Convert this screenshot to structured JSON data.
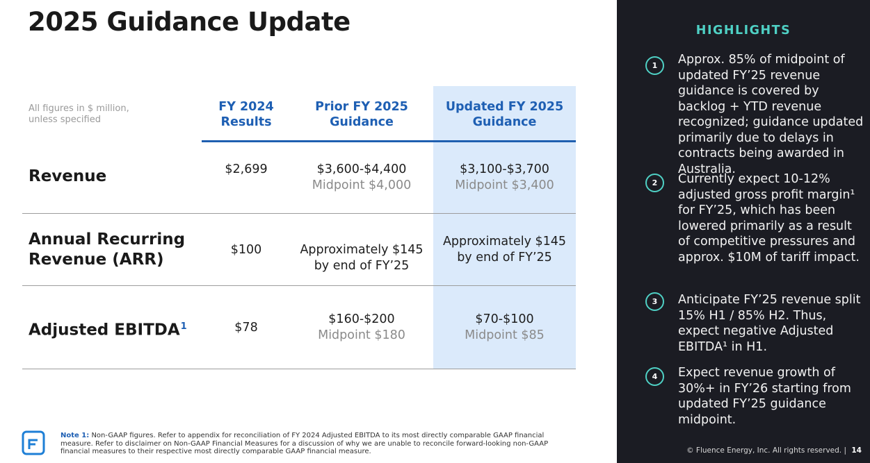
{
  "title": "2025 Guidance Update",
  "table": {
    "units_note_line1": "All figures in $ million,",
    "units_note_line2": "unless specified",
    "columns": [
      {
        "line1": "FY 2024",
        "line2": "Results"
      },
      {
        "line1": "Prior FY 2025",
        "line2": "Guidance"
      },
      {
        "line1": "Updated FY 2025",
        "line2": "Guidance"
      }
    ],
    "rows": [
      {
        "label_line1": "Revenue",
        "label_line2": "",
        "label_sup": "",
        "fy2024": "$2,699",
        "prior_main": "$3,600-$4,400",
        "prior_mid": "Midpoint $4,000",
        "updated_main": "$3,100-$3,700",
        "updated_mid": "Midpoint $3,400"
      },
      {
        "label_line1": "Annual Recurring",
        "label_line2": "Revenue (ARR)",
        "label_sup": "",
        "fy2024": "$100",
        "prior_main": "Approximately $145",
        "prior_mid": "by end of FY’25",
        "updated_main": "Approximately $145",
        "updated_mid": "by end of FY’25"
      },
      {
        "label_line1": "Adjusted EBITDA",
        "label_line2": "",
        "label_sup": "1",
        "fy2024": "$78",
        "prior_main": "$160-$200",
        "prior_mid": "Midpoint $180",
        "updated_main": "$70-$100",
        "updated_mid": "Midpoint $85"
      }
    ]
  },
  "footnote": {
    "label": "Note 1:",
    "text": "Non-GAAP figures. Refer to appendix for reconciliation of FY 2024 Adjusted EBITDA to its most directly comparable GAAP financial measure. Refer to disclaimer on Non-GAAP Financial Measures for a discussion of why we are unable to reconcile forward-looking non-GAAP financial measures to their respective most directly comparable GAAP financial measure."
  },
  "highlights": {
    "title": "HIGHLIGHTS",
    "items": [
      {
        "num": "1",
        "text": "Approx. 85% of midpoint of updated FY’25 revenue guidance is covered by backlog + YTD revenue recognized; guidance updated primarily due to delays in contracts being awarded in Australia."
      },
      {
        "num": "2",
        "text": "Currently expect 10-12% adjusted gross profit margin¹ for FY’25, which has been lowered primarily as a result of competitive pressures and approx. $10M of tariff impact."
      },
      {
        "num": "3",
        "text": "Anticipate FY’25 revenue split 15% H1 / 85% H2. Thus, expect negative Adjusted EBITDA¹ in H1."
      },
      {
        "num": "4",
        "text": "Expect revenue growth of 30%+ in FY’26 starting from updated FY’25 guidance midpoint."
      }
    ]
  },
  "copyright": "© Fluence Energy, Inc. All rights reserved.",
  "separator": "|",
  "page_number": "14",
  "colors": {
    "accent_blue": "#1e5fb3",
    "highlight_bg": "#dbeafb",
    "panel_bg": "#1b1c23",
    "teal": "#4fd1c5"
  },
  "icons": {
    "logo": "fluence-logo-icon"
  }
}
